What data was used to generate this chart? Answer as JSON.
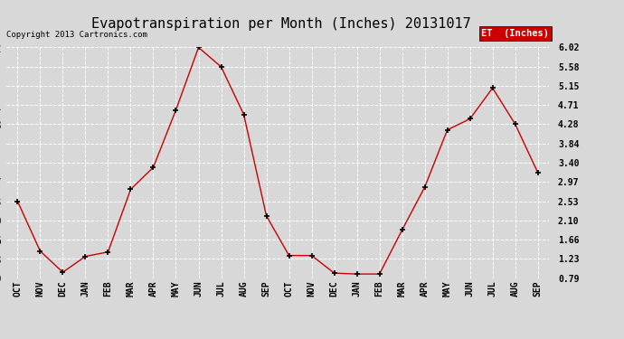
{
  "title": "Evapotranspiration per Month (Inches) 20131017",
  "copyright_text": "Copyright 2013 Cartronics.com",
  "legend_label": "ET  (Inches)",
  "legend_bg": "#cc0000",
  "legend_text_color": "#ffffff",
  "x_labels": [
    "OCT",
    "NOV",
    "DEC",
    "JAN",
    "FEB",
    "MAR",
    "APR",
    "MAY",
    "JUN",
    "JUL",
    "AUG",
    "SEP",
    "OCT",
    "NOV",
    "DEC",
    "JAN",
    "FEB",
    "MAR",
    "APR",
    "MAY",
    "JUN",
    "JUL",
    "AUG",
    "SEP"
  ],
  "y_values": [
    2.53,
    1.4,
    0.92,
    1.28,
    1.38,
    2.8,
    3.3,
    4.6,
    6.02,
    5.58,
    4.5,
    2.2,
    1.3,
    1.3,
    0.9,
    0.88,
    0.88,
    1.88,
    2.85,
    4.15,
    4.4,
    5.1,
    4.28,
    3.18
  ],
  "y_ticks": [
    0.79,
    1.23,
    1.66,
    2.1,
    2.53,
    2.97,
    3.4,
    3.84,
    4.28,
    4.71,
    5.15,
    5.58,
    6.02
  ],
  "line_color": "#cc0000",
  "marker_color": "#000000",
  "background_color": "#d8d8d8",
  "grid_color": "#ffffff",
  "title_fontsize": 11,
  "tick_fontsize": 7,
  "copyright_fontsize": 6.5,
  "legend_fontsize": 7.5
}
